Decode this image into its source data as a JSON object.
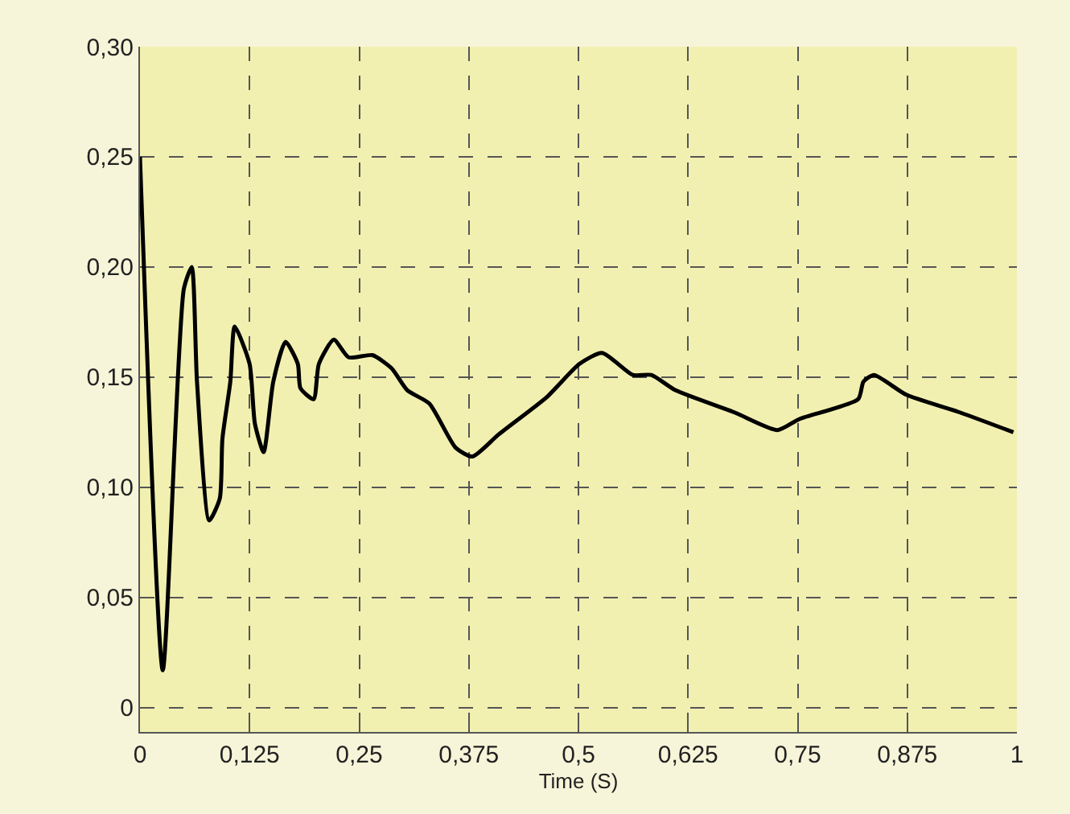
{
  "chart_data": {
    "type": "line",
    "xlabel": "Time (S)",
    "x": [
      0,
      0.026,
      0.05,
      0.059,
      0.065,
      0.079,
      0.091,
      0.094,
      0.103,
      0.108,
      0.125,
      0.131,
      0.141,
      0.152,
      0.166,
      0.18,
      0.183,
      0.198,
      0.204,
      0.221,
      0.238,
      0.265,
      0.287,
      0.305,
      0.33,
      0.36,
      0.379,
      0.409,
      0.464,
      0.501,
      0.527,
      0.562,
      0.583,
      0.611,
      0.678,
      0.727,
      0.752,
      0.819,
      0.825,
      0.837,
      0.874,
      0.935,
      0.996
    ],
    "series": [
      {
        "color": "#000000",
        "values": [
          0.25,
          0.017,
          0.19,
          0.2,
          0.148,
          0.085,
          0.095,
          0.122,
          0.148,
          0.173,
          0.156,
          0.129,
          0.116,
          0.148,
          0.166,
          0.156,
          0.145,
          0.14,
          0.156,
          0.167,
          0.159,
          0.16,
          0.154,
          0.144,
          0.138,
          0.118,
          0.114,
          0.124,
          0.141,
          0.156,
          0.161,
          0.151,
          0.151,
          0.144,
          0.134,
          0.126,
          0.131,
          0.14,
          0.148,
          0.151,
          0.142,
          0.134,
          0.125
        ]
      }
    ],
    "xlim": [
      0,
      1
    ],
    "ylim": [
      -0.011,
      0.3
    ],
    "xticks": [
      0,
      {
        "value": 0.125,
        "label": "0,125"
      },
      {
        "value": 0.25,
        "label": "0,25"
      },
      {
        "value": 0.375,
        "label": "0,375"
      },
      {
        "value": 0.5,
        "label": "0,5"
      },
      {
        "value": 0.625,
        "label": "0,625"
      },
      {
        "value": 0.75,
        "label": "0,75"
      },
      {
        "value": 0.875,
        "label": "0,875"
      },
      1
    ],
    "yticks": [
      0,
      {
        "value": 0.05,
        "label": "0,05"
      },
      {
        "value": 0.1,
        "label": "0,10"
      },
      {
        "value": 0.15,
        "label": "0,15"
      },
      {
        "value": 0.2,
        "label": "0,20"
      },
      {
        "value": 0.25,
        "label": "0,25"
      },
      {
        "value": 0.3,
        "label": "0,30"
      }
    ],
    "grid": true,
    "marker": "none",
    "line_style": "solid"
  }
}
